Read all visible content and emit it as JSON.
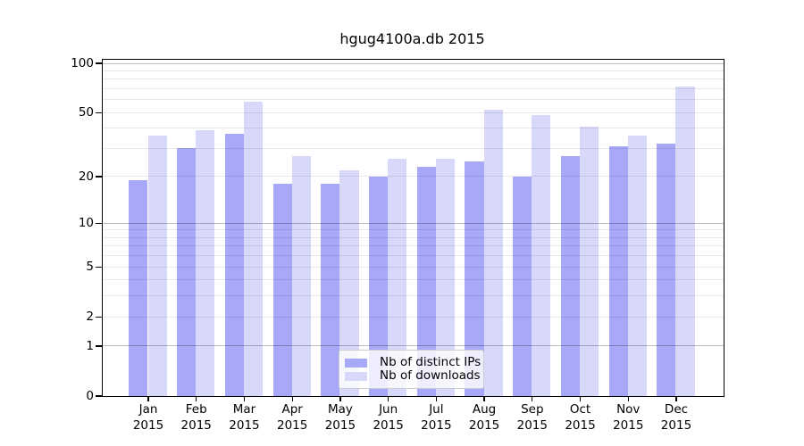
{
  "figure": {
    "title": "hgug4100a.db 2015"
  },
  "legend": {
    "items": [
      {
        "label": "Nb of distinct IPs",
        "color": "#a8a8f8"
      },
      {
        "label": "Nb of downloads",
        "color": "#d8d8fa"
      }
    ]
  },
  "axes": {
    "y_tick_labels": [
      "100",
      "50",
      "20",
      "10",
      "5",
      "2",
      "1",
      "0"
    ],
    "x_months": [
      "Jan",
      "Feb",
      "Mar",
      "Apr",
      "May",
      "Jun",
      "Jul",
      "Aug",
      "Sep",
      "Oct",
      "Nov",
      "Dec"
    ],
    "x_year": "2015"
  },
  "chart_data": {
    "type": "bar",
    "title": "hgug4100a.db 2015",
    "categories": [
      "Jan 2015",
      "Feb 2015",
      "Mar 2015",
      "Apr 2015",
      "May 2015",
      "Jun 2015",
      "Jul 2015",
      "Aug 2015",
      "Sep 2015",
      "Oct 2015",
      "Nov 2015",
      "Dec 2015"
    ],
    "series": [
      {
        "name": "Nb of distinct IPs",
        "color": "#a8a8f8",
        "values": [
          19,
          30,
          37,
          18,
          18,
          20,
          23,
          25,
          20,
          27,
          31,
          32
        ]
      },
      {
        "name": "Nb of downloads",
        "color": "#d8d8fa",
        "values": [
          36,
          39,
          58,
          27,
          22,
          26,
          26,
          52,
          48,
          41,
          36,
          72
        ]
      }
    ],
    "xlabel": "",
    "ylabel": "",
    "yscale": "log1p",
    "ylim": [
      0,
      106
    ],
    "yticks": [
      0,
      1,
      2,
      5,
      10,
      20,
      50,
      100
    ],
    "minor_gridlines": [
      2,
      3,
      4,
      5,
      6,
      7,
      8,
      9,
      20,
      30,
      40,
      50,
      60,
      70,
      80,
      90
    ],
    "decade_gridlines": [
      1,
      10,
      100
    ],
    "grid": true,
    "legend_position": "lower center"
  }
}
